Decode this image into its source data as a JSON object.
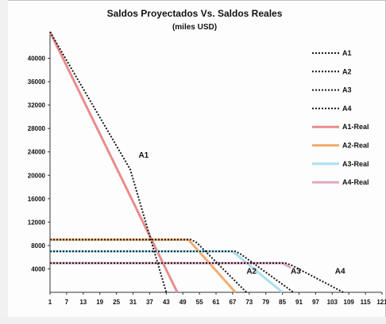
{
  "chart_data": {
    "type": "line",
    "title": "Saldos Proyectados Vs. Saldos Reales",
    "subtitle": "(miles USD)",
    "xlabel": "",
    "ylabel": "",
    "x_ticks": [
      "1",
      "7",
      "13",
      "19",
      "25",
      "31",
      "37",
      "43",
      "49",
      "55",
      "61",
      "67",
      "73",
      "79",
      "85",
      "91",
      "97",
      "103",
      "109",
      "115",
      "121"
    ],
    "y_ticks": [
      "4000",
      "8000",
      "12000",
      "16000",
      "20000",
      "24000",
      "28000",
      "32000",
      "36000",
      "40000"
    ],
    "xlim": [
      1,
      121
    ],
    "ylim": [
      0,
      44000
    ],
    "grid": false,
    "legend_position": "right",
    "series": [
      {
        "name": "A1",
        "style": "dotted",
        "color": "#1a1a1a",
        "points": [
          [
            1,
            44500
          ],
          [
            30,
            21000
          ],
          [
            43,
            0
          ]
        ]
      },
      {
        "name": "A2",
        "style": "dotted",
        "color": "#1a1a1a",
        "points": [
          [
            1,
            9000
          ],
          [
            52,
            9000
          ],
          [
            54,
            8500
          ],
          [
            72,
            0
          ]
        ]
      },
      {
        "name": "A3",
        "style": "dotted",
        "color": "#1a1a1a",
        "points": [
          [
            1,
            7000
          ],
          [
            68,
            7000
          ],
          [
            70,
            6500
          ],
          [
            89,
            0
          ]
        ]
      },
      {
        "name": "A4",
        "style": "dotted",
        "color": "#1a1a1a",
        "points": [
          [
            1,
            5000
          ],
          [
            86,
            5000
          ],
          [
            88,
            4700
          ],
          [
            107,
            0
          ]
        ]
      },
      {
        "name": "A1-Real",
        "style": "solid",
        "color": "#e88c8c",
        "points": [
          [
            1,
            44500
          ],
          [
            47,
            0
          ]
        ]
      },
      {
        "name": "A2-Real",
        "style": "solid",
        "color": "#f2ac72",
        "points": [
          [
            1,
            9000
          ],
          [
            51,
            9000
          ],
          [
            68,
            0
          ]
        ]
      },
      {
        "name": "A3-Real",
        "style": "solid",
        "color": "#a8dff0",
        "points": [
          [
            1,
            7000
          ],
          [
            67,
            7000
          ],
          [
            85,
            0
          ]
        ]
      },
      {
        "name": "A4-Real",
        "style": "solid",
        "color": "#e2a8c4",
        "points": [
          [
            1,
            5000
          ],
          [
            85,
            5000
          ],
          [
            88,
            4200
          ]
        ]
      }
    ],
    "annotations": [
      {
        "text": "A1",
        "x": 33,
        "y": 23000
      },
      {
        "text": "A2",
        "x": 72,
        "y": 3200
      },
      {
        "text": "A3",
        "x": 88,
        "y": 3200
      },
      {
        "text": "A4",
        "x": 104,
        "y": 3200
      }
    ]
  }
}
